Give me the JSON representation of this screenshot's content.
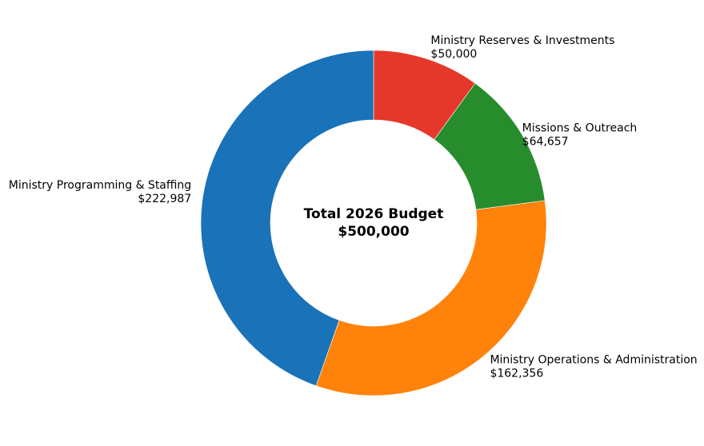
{
  "chart_data": {
    "type": "pie",
    "variant": "donut",
    "center_label": {
      "line1": "Total 2026 Budget",
      "line2": "$500,000"
    },
    "total": 500000,
    "start_angle_deg": 90,
    "direction": "clockwise",
    "series": [
      {
        "name": "Ministry Reserves & Investments",
        "value": 50000,
        "value_label": "$50,000",
        "color": "#e5382a"
      },
      {
        "name": "Missions & Outreach",
        "value": 64657,
        "value_label": "$64,657",
        "color": "#268c2c"
      },
      {
        "name": "Ministry Operations & Administration",
        "value": 162356,
        "value_label": "$162,356",
        "color": "#ff820a"
      },
      {
        "name": "Ministry Programming & Staffing",
        "value": 222987,
        "value_label": "$222,987",
        "color": "#1a72b8"
      }
    ]
  }
}
